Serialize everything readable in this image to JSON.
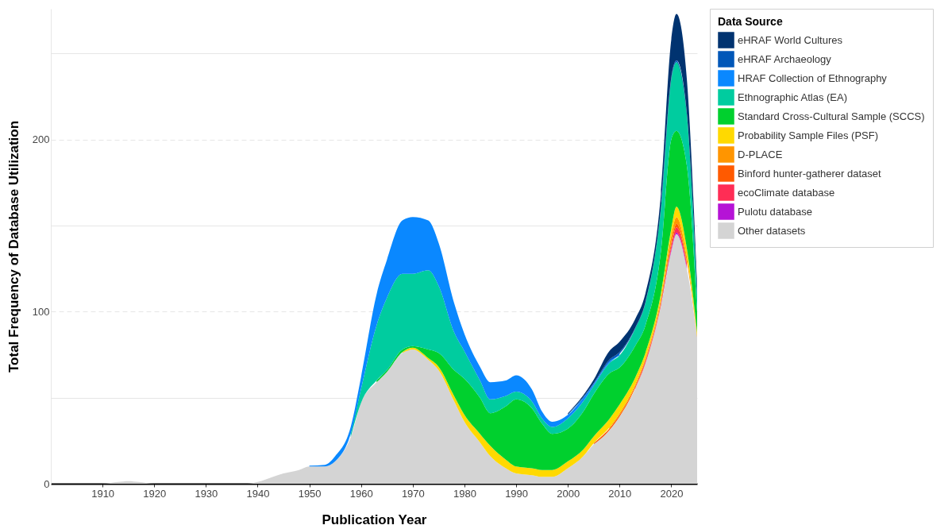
{
  "chart_data": {
    "type": "area",
    "stacked": true,
    "xlabel": "Publication Year",
    "ylabel": "Total Frequency of Database Utilization",
    "legend_title": "Data Source",
    "legend": "right",
    "grid": "y",
    "x": [
      1900,
      1910,
      1913,
      1915,
      1917,
      1920,
      1930,
      1938,
      1940,
      1943,
      1945,
      1948,
      1950,
      1953,
      1955,
      1958,
      1960,
      1963,
      1965,
      1968,
      1970,
      1973,
      1975,
      1978,
      1980,
      1983,
      1985,
      1988,
      1990,
      1993,
      1995,
      1997,
      2000,
      2003,
      2005,
      2008,
      2010,
      2013,
      2015,
      2018,
      2020,
      2021,
      2023,
      2025
    ],
    "xlim": [
      1900,
      2025
    ],
    "xticks": [
      1910,
      1920,
      1930,
      1940,
      1950,
      1960,
      1970,
      1980,
      1990,
      2000,
      2010,
      2020
    ],
    "ylim": [
      0,
      276
    ],
    "yticks": [
      0,
      {
        "value": 50,
        "label": null
      },
      100,
      {
        "value": 150,
        "label": null
      },
      200,
      {
        "value": 250,
        "label": null
      }
    ],
    "series": [
      {
        "name": "Other datasets",
        "color": "#d4d4d4",
        "values": [
          0,
          0,
          1,
          1.5,
          1,
          0,
          0,
          0,
          1,
          4,
          6,
          8,
          10,
          10,
          13,
          27,
          47,
          59,
          65,
          76,
          78,
          72,
          66,
          48,
          36,
          24,
          16,
          9,
          6,
          5,
          4,
          4,
          9,
          16,
          23,
          31,
          39,
          55,
          70,
          103,
          135,
          145,
          125,
          85
        ]
      },
      {
        "name": "Pulotu database",
        "color": "#b513d6",
        "values": [
          null,
          null,
          null,
          null,
          null,
          null,
          null,
          null,
          null,
          null,
          null,
          null,
          null,
          null,
          null,
          null,
          null,
          null,
          null,
          null,
          null,
          null,
          null,
          null,
          null,
          null,
          null,
          null,
          null,
          null,
          null,
          null,
          null,
          null,
          null,
          null,
          null,
          null,
          null,
          0.5,
          1,
          1,
          1,
          null
        ]
      },
      {
        "name": "ecoClimate database",
        "color": "#ff2d55",
        "values": [
          null,
          null,
          null,
          null,
          null,
          null,
          null,
          null,
          null,
          null,
          null,
          null,
          null,
          null,
          null,
          null,
          null,
          null,
          null,
          null,
          null,
          null,
          null,
          null,
          null,
          null,
          null,
          null,
          null,
          null,
          null,
          null,
          null,
          null,
          null,
          null,
          null,
          0.5,
          1,
          1,
          2,
          3,
          2,
          null
        ]
      },
      {
        "name": "Binford hunter-gatherer dataset",
        "color": "#ff5a00",
        "values": [
          null,
          null,
          null,
          null,
          null,
          null,
          null,
          null,
          null,
          null,
          null,
          null,
          null,
          null,
          null,
          null,
          null,
          null,
          null,
          null,
          null,
          null,
          null,
          null,
          null,
          null,
          null,
          null,
          null,
          null,
          null,
          null,
          null,
          null,
          0.5,
          1,
          1,
          1,
          1,
          1,
          2,
          2,
          1,
          null
        ]
      },
      {
        "name": "D-PLACE",
        "color": "#ff9500",
        "values": [
          null,
          null,
          null,
          null,
          null,
          null,
          null,
          null,
          null,
          null,
          null,
          null,
          null,
          null,
          null,
          null,
          null,
          null,
          null,
          null,
          null,
          null,
          null,
          null,
          null,
          null,
          null,
          null,
          null,
          null,
          null,
          null,
          null,
          null,
          null,
          0.5,
          1,
          1,
          1,
          2,
          4,
          4,
          3,
          1
        ]
      },
      {
        "name": "Probability Sample Files (PSF)",
        "color": "#ffd900",
        "values": [
          null,
          null,
          null,
          null,
          null,
          null,
          null,
          null,
          null,
          null,
          null,
          null,
          null,
          null,
          null,
          null,
          null,
          null,
          null,
          0.5,
          1,
          1,
          2,
          3,
          4,
          5,
          6,
          5,
          4,
          4,
          4,
          4,
          4,
          4,
          4,
          5,
          5,
          4,
          3,
          3,
          4,
          6,
          5,
          2
        ]
      },
      {
        "name": "Standard Cross-Cultural Sample (SCCS)",
        "color": "#00d02e",
        "values": [
          null,
          null,
          null,
          null,
          null,
          null,
          null,
          null,
          null,
          null,
          null,
          null,
          null,
          null,
          null,
          null,
          null,
          1,
          1,
          1.5,
          1,
          5,
          8,
          15,
          21,
          21,
          19,
          31,
          39,
          35,
          27,
          21,
          19,
          22,
          24.5,
          26.5,
          21.5,
          18.5,
          16,
          24.5,
          52,
          44,
          48,
          12
        ]
      },
      {
        "name": "Ethnographic Atlas (EA)",
        "color": "#00cc9f",
        "values": [
          null,
          null,
          null,
          null,
          null,
          null,
          null,
          null,
          null,
          null,
          null,
          null,
          null,
          null,
          null,
          2,
          8,
          32,
          42,
          44,
          42,
          46,
          39,
          22,
          16,
          10,
          8,
          6,
          4.5,
          4,
          3,
          4,
          6,
          6,
          5,
          6,
          7,
          10,
          13,
          25,
          35,
          40,
          30,
          10
        ]
      },
      {
        "name": "HRAF Collection of Ethnography",
        "color": "#0a88ff",
        "values": [
          null,
          null,
          null,
          null,
          null,
          null,
          null,
          null,
          null,
          null,
          null,
          null,
          0.5,
          1,
          3,
          4,
          7,
          18,
          22,
          31,
          33,
          29,
          25,
          17,
          10,
          8,
          10,
          9,
          9.5,
          7,
          4,
          3,
          2,
          2,
          1,
          1,
          1,
          null,
          null,
          null,
          null,
          null,
          null,
          null
        ]
      },
      {
        "name": "eHRAF Archaeology",
        "color": "#0057b8",
        "values": [
          null,
          null,
          null,
          null,
          null,
          null,
          null,
          null,
          null,
          null,
          null,
          null,
          null,
          null,
          null,
          null,
          null,
          null,
          null,
          null,
          null,
          null,
          null,
          null,
          null,
          null,
          null,
          null,
          null,
          null,
          null,
          null,
          0.5,
          0.5,
          0.5,
          1,
          1,
          0.5,
          0.5,
          0.5,
          1,
          1,
          0.5,
          null
        ]
      },
      {
        "name": "eHRAF World Cultures",
        "color": "#003370",
        "values": [
          null,
          null,
          null,
          null,
          null,
          null,
          null,
          null,
          null,
          null,
          null,
          null,
          null,
          null,
          null,
          null,
          null,
          null,
          null,
          null,
          null,
          null,
          null,
          null,
          null,
          null,
          null,
          null,
          null,
          null,
          null,
          null,
          0.5,
          1,
          2,
          5,
          6,
          5,
          5,
          8,
          22,
          27,
          20,
          5
        ]
      }
    ]
  }
}
